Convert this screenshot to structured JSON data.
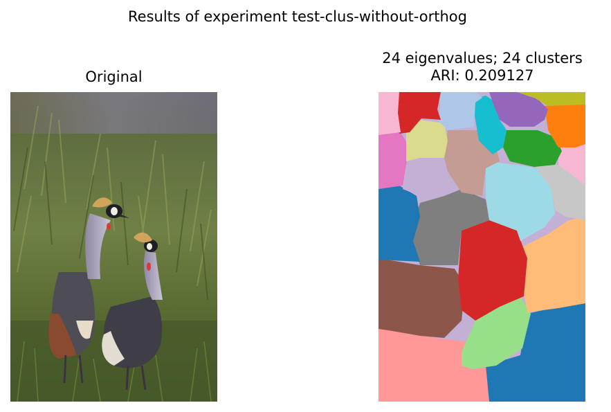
{
  "figure": {
    "suptitle": "Results of experiment test-clus-without-orthog"
  },
  "panels": {
    "original": {
      "title": "Original"
    },
    "segmentation": {
      "title_line1": "24 eigenvalues; 24 clusters",
      "title_line2": "ARI: 0.209127"
    }
  },
  "colors": {
    "background": "#ffffff",
    "grass_dark": "#4b5a2c",
    "grass_light": "#7f8f4f",
    "sky": "#7f7b86",
    "crane_grey": "#4e4d55",
    "crane_neck": "#b7b2c3",
    "crane_crest": "#d0a55b",
    "wattle": "#d83a3a",
    "tab20": [
      "#1f77b4",
      "#aec7e8",
      "#ff7f0e",
      "#ffbb78",
      "#2ca02c",
      "#98df8a",
      "#d62728",
      "#ff9896",
      "#9467bd",
      "#c5b0d5",
      "#8c564b",
      "#c49c94",
      "#e377c2",
      "#f7b6d2",
      "#7f7f7f",
      "#c7c7c7",
      "#bcbd22",
      "#dbdb8d",
      "#17becf",
      "#9edae5"
    ]
  }
}
